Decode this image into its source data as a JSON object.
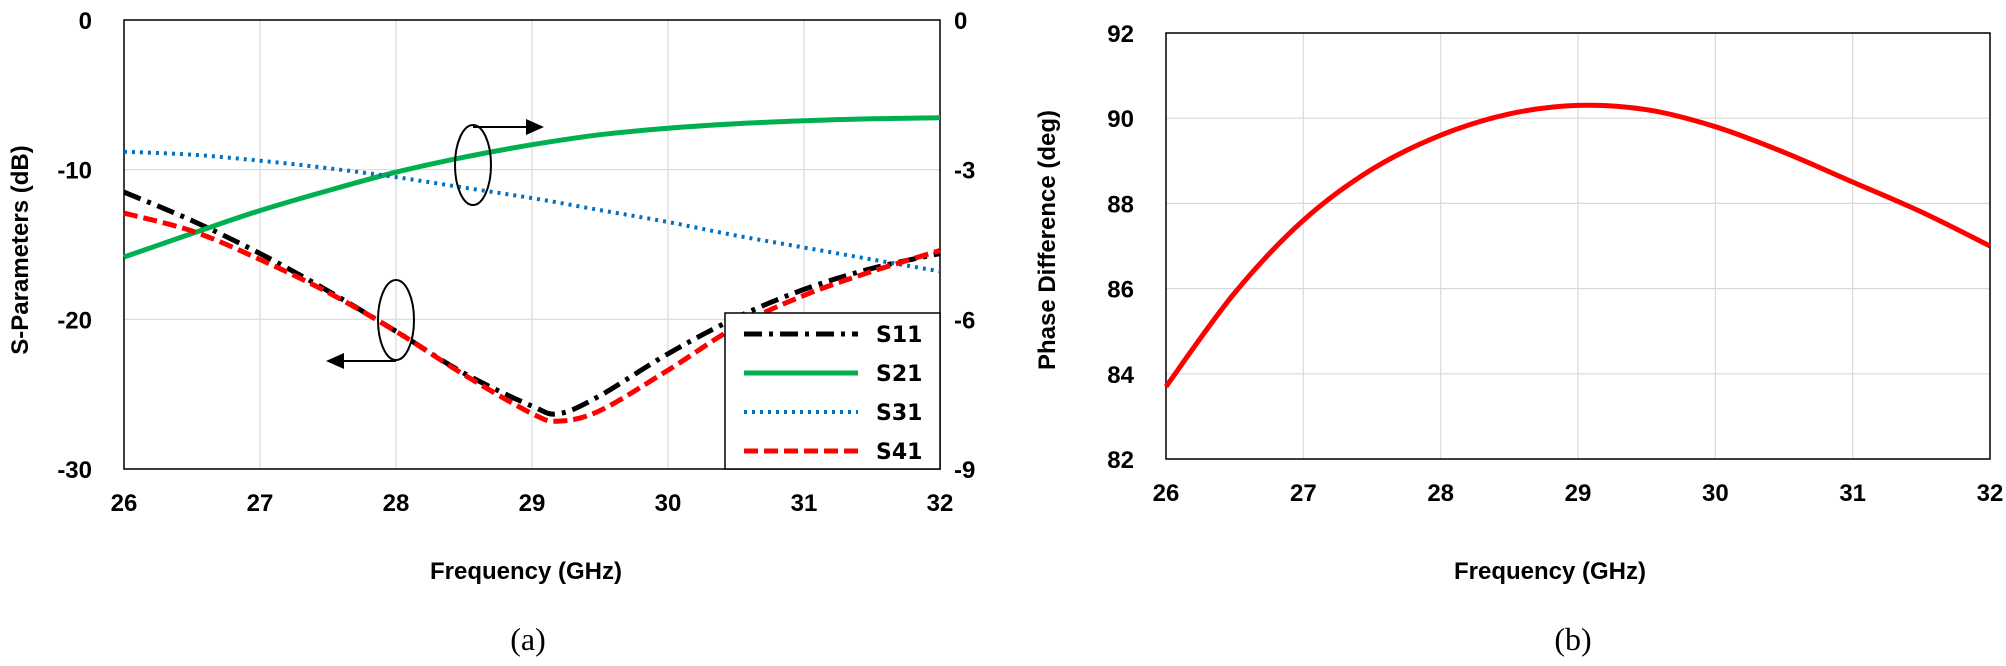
{
  "chart_data": [
    {
      "type": "line",
      "caption": "(a)",
      "xlabel": "Frequency (GHz)",
      "ylabel": "S-Parameters (dB)",
      "xlim": [
        26,
        32
      ],
      "ylim": [
        -30,
        0
      ],
      "y2lim": [
        -9,
        0
      ],
      "xticks": [
        "26",
        "27",
        "28",
        "29",
        "30",
        "31",
        "32"
      ],
      "yticks": [
        "0",
        "-10",
        "-20",
        "-30"
      ],
      "y2ticks": [
        "0",
        "-3",
        "-6",
        "-9"
      ],
      "grid": true,
      "legend_position": "bottom-right",
      "series": [
        {
          "name": "S11",
          "axis": "left",
          "color": "#000000",
          "dash": "dash-dot",
          "x": [
            26,
            26.5,
            27,
            27.5,
            28,
            28.5,
            29,
            29.2,
            29.5,
            30,
            30.5,
            31,
            31.5,
            32
          ],
          "y": [
            -11.5,
            -13.4,
            -15.6,
            -18.1,
            -20.8,
            -23.6,
            -25.8,
            -26.3,
            -25.1,
            -22.3,
            -19.9,
            -18.0,
            -16.6,
            -15.6
          ]
        },
        {
          "name": "S21",
          "axis": "right",
          "color": "#00b050",
          "dash": "solid",
          "x": [
            26,
            26.5,
            27,
            27.5,
            28,
            28.5,
            29,
            29.5,
            30,
            30.5,
            31,
            31.5,
            32
          ],
          "y": [
            -4.75,
            -4.28,
            -3.82,
            -3.42,
            -3.05,
            -2.75,
            -2.5,
            -2.3,
            -2.17,
            -2.08,
            -2.02,
            -1.98,
            -1.96
          ]
        },
        {
          "name": "S31",
          "axis": "left",
          "color": "#0070c0",
          "dash": "dot",
          "x": [
            26,
            26.5,
            27,
            27.5,
            28,
            28.5,
            29,
            29.5,
            30,
            30.5,
            31,
            31.5,
            32
          ],
          "y": [
            -8.8,
            -9.0,
            -9.4,
            -9.9,
            -10.5,
            -11.2,
            -11.9,
            -12.7,
            -13.5,
            -14.4,
            -15.2,
            -16.0,
            -16.8
          ]
        },
        {
          "name": "S41",
          "axis": "left",
          "color": "#ff0000",
          "dash": "dash",
          "x": [
            26,
            26.5,
            27,
            27.5,
            28,
            28.5,
            29,
            29.2,
            29.5,
            30,
            30.5,
            31,
            31.5,
            32
          ],
          "y": [
            -12.9,
            -14.1,
            -16.0,
            -18.2,
            -20.8,
            -23.7,
            -26.3,
            -26.8,
            -26.1,
            -23.4,
            -20.5,
            -18.4,
            -16.8,
            -15.4
          ]
        }
      ]
    },
    {
      "type": "line",
      "caption": "(b)",
      "xlabel": "Frequency (GHz)",
      "ylabel": "Phase Difference (deg)",
      "xlim": [
        26,
        32
      ],
      "ylim": [
        82,
        92
      ],
      "xticks": [
        "26",
        "27",
        "28",
        "29",
        "30",
        "31",
        "32"
      ],
      "yticks": [
        "92",
        "90",
        "88",
        "86",
        "84",
        "82"
      ],
      "grid": true,
      "series": [
        {
          "color": "#ff0000",
          "dash": "solid",
          "x": [
            26,
            26.5,
            27,
            27.5,
            28,
            28.5,
            29,
            29.5,
            30,
            30.5,
            31,
            31.5,
            32
          ],
          "y": [
            83.7,
            85.9,
            87.6,
            88.8,
            89.6,
            90.1,
            90.3,
            90.2,
            89.8,
            89.2,
            88.5,
            87.8,
            87.0
          ]
        }
      ]
    }
  ]
}
